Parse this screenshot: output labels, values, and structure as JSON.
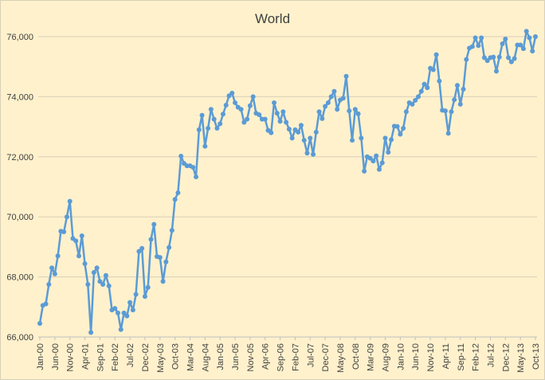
{
  "chart_data": {
    "type": "line",
    "title": "World",
    "xlabel": "",
    "ylabel": "",
    "ylim": [
      66000,
      76000
    ],
    "yticks": [
      66000,
      68000,
      70000,
      72000,
      74000,
      76000
    ],
    "ytick_labels": [
      "66,000",
      "68,000",
      "70,000",
      "72,000",
      "74,000",
      "76,000"
    ],
    "xtick_labels": [
      "Jan-00",
      "Jun-00",
      "Nov-00",
      "Apr-01",
      "Sep-01",
      "Feb-02",
      "Jul-02",
      "Dec-02",
      "May-03",
      "Oct-03",
      "Mar-04",
      "Aug-04",
      "Jan-05",
      "Jun-05",
      "Nov-05",
      "Apr-06",
      "Sep-06",
      "Feb-07",
      "Jul-07",
      "Dec-07",
      "May-08",
      "Oct-08",
      "Mar-09",
      "Aug-09",
      "Jan-10",
      "Jun-10",
      "Nov-10",
      "Apr-11",
      "Sep-11",
      "Feb-12",
      "Jul-12",
      "Dec-12",
      "May-13",
      "Oct-13"
    ],
    "line_color": "#5b9bd5",
    "grid": true,
    "legend": "none",
    "series": [
      {
        "values": [
          66450,
          67050,
          67100,
          67750,
          68300,
          68100,
          68700,
          69520,
          69500,
          70000,
          70520,
          69280,
          69200,
          68700,
          69370,
          68440,
          67750,
          66150,
          68150,
          68300,
          67850,
          67750,
          68050,
          67700,
          66900,
          66950,
          66800,
          66250,
          66800,
          66700,
          67150,
          66900,
          67420,
          68850,
          68950,
          67350,
          67650,
          69250,
          69750,
          68680,
          68650,
          67850,
          68500,
          68980,
          69550,
          70580,
          70800,
          72020,
          71780,
          71700,
          71700,
          71650,
          71330,
          72900,
          73380,
          72350,
          72950,
          73580,
          73250,
          72950,
          73100,
          73420,
          73720,
          74030,
          74120,
          73800,
          73650,
          73580,
          73150,
          73250,
          73700,
          74000,
          73450,
          73400,
          73250,
          73250,
          72880,
          72800,
          73800,
          73450,
          73180,
          73500,
          73150,
          72920,
          72620,
          72900,
          72820,
          73050,
          72550,
          72120,
          72620,
          72080,
          72820,
          73500,
          73270,
          73680,
          73800,
          74000,
          74180,
          73580,
          73890,
          73950,
          74680,
          73530,
          72550,
          73580,
          73430,
          72620,
          71520,
          72000,
          71950,
          71860,
          72030,
          71580,
          71800,
          72620,
          72150,
          72570,
          73020,
          73010,
          72750,
          72950,
          73500,
          73800,
          73750,
          73880,
          74000,
          74180,
          74420,
          74300,
          74950,
          74900,
          75400,
          74520,
          73550,
          73530,
          72780,
          73500,
          73900,
          74380,
          73750,
          74250,
          75240,
          75620,
          75670,
          75960,
          75700,
          75960,
          75300,
          75200,
          75300,
          75320,
          74850,
          75320,
          75760,
          75920,
          75300,
          75160,
          75270,
          75720,
          75720,
          75600,
          76180,
          75960,
          75520,
          76000
        ]
      }
    ]
  }
}
